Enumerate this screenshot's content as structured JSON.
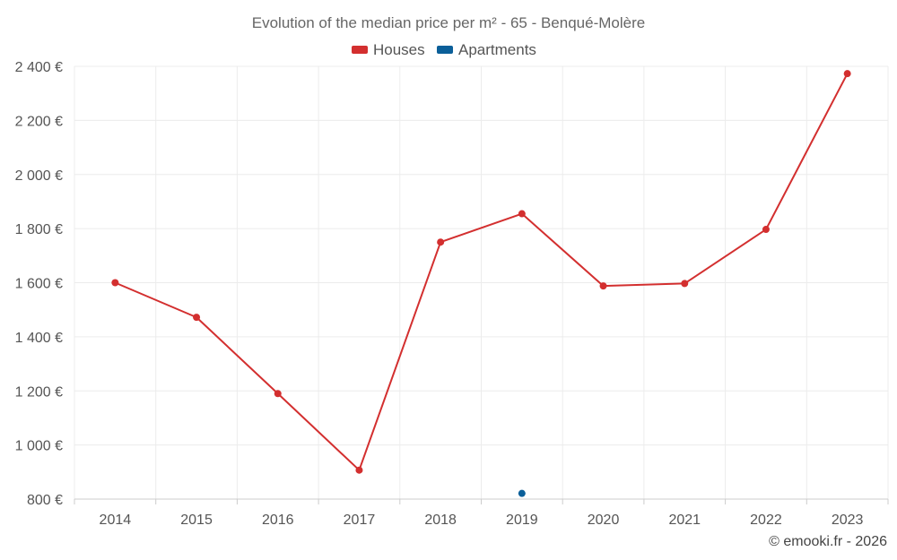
{
  "chart_data": {
    "type": "line",
    "title": "Evolution of the median price per m² - 65 - Benqué-Molère",
    "categories": [
      "2014",
      "2015",
      "2016",
      "2017",
      "2018",
      "2019",
      "2020",
      "2021",
      "2022",
      "2023"
    ],
    "series": [
      {
        "name": "Houses",
        "color": "#d32f2f",
        "values": [
          1600,
          1472,
          1190,
          907,
          1750,
          1855,
          1588,
          1597,
          1797,
          2373
        ]
      },
      {
        "name": "Apartments",
        "color": "#0b5f99",
        "values": [
          null,
          null,
          null,
          null,
          null,
          821,
          null,
          null,
          null,
          null
        ]
      }
    ],
    "ylim": [
      800,
      2400
    ],
    "yticks": [
      800,
      1000,
      1200,
      1400,
      1600,
      1800,
      2000,
      2200,
      2400
    ],
    "ytick_labels": [
      "800 €",
      "1 000 €",
      "1 200 €",
      "1 400 €",
      "1 600 €",
      "1 800 €",
      "2 000 €",
      "2 200 €",
      "2 400 €"
    ],
    "xlabel": "",
    "ylabel": "",
    "grid": true,
    "legend_position": "top-center"
  },
  "credit": "© emooki.fr - 2026"
}
